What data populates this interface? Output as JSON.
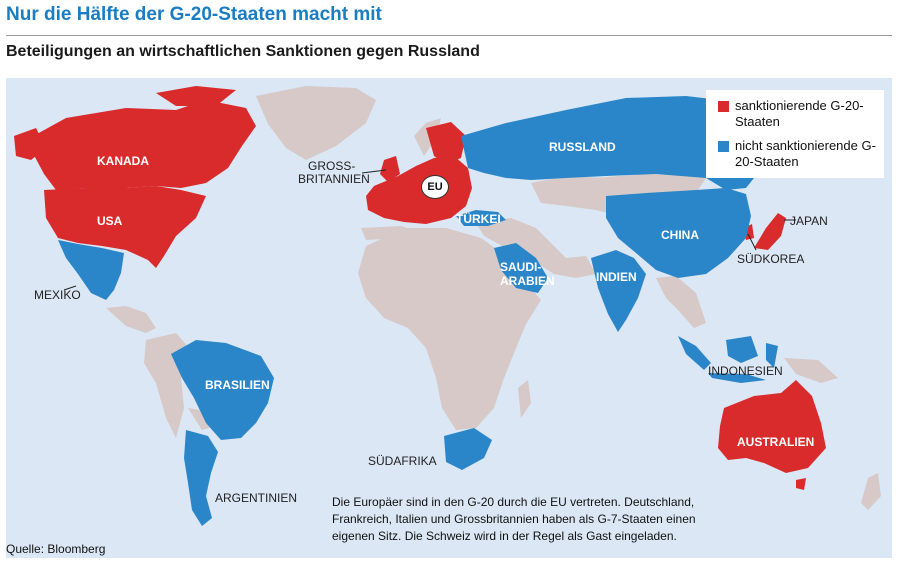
{
  "header": {
    "title": "Nur die Hälfte der G-20-Staaten macht mit",
    "subtitle": "Beteiligungen an wirtschaftlichen Sanktionen gegen Russland"
  },
  "colors": {
    "sanctioning": "#d92b2b",
    "non_sanctioning": "#2a86c8",
    "other_land": "#d6c9c7",
    "ocean": "#dbe7f4",
    "title": "#1a7dc1"
  },
  "legend": {
    "sanctioning": "sanktionierende G-20-Staaten",
    "non_sanctioning": "nicht sanktionierende G-20-Staaten"
  },
  "labels": {
    "kanada": "KANADA",
    "usa": "USA",
    "mexiko": "MEXIKO",
    "brasilien": "BRASILIEN",
    "argentinien": "ARGENTINIEN",
    "gb_1": "GROSS-",
    "gb_2": "BRITANNIEN",
    "eu": "EU",
    "tuerkei": "TÜRKEI",
    "russland": "RUSSLAND",
    "saudi_1": "SAUDI-",
    "saudi_2": "ARABIEN",
    "indien": "INDIEN",
    "china": "CHINA",
    "japan": "JAPAN",
    "suedkorea": "SÜDKOREA",
    "indonesien": "INDONESIEN",
    "australien": "AUSTRALIEN",
    "suedafrika": "SÜDAFRIKA"
  },
  "note": "Die Europäer sind in den G-20 durch die EU vertreten. Deutschland, Frankreich, Italien und Grossbritannien haben als G-7-Staaten einen eigenen Sitz. Die Schweiz wird in der Regel als Gast eingeladen.",
  "source": "Quelle: Bloomberg"
}
